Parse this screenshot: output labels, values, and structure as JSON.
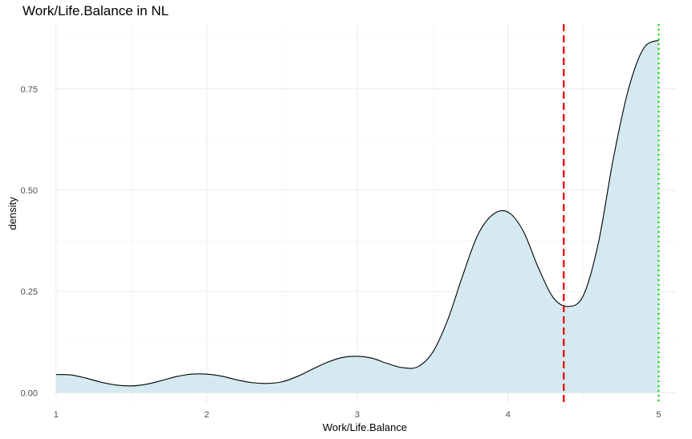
{
  "chart_data": {
    "type": "area",
    "title": "Work/Life.Balance in NL",
    "xlabel": "Work/Life.Balance",
    "ylabel": "density",
    "xlim": [
      0.98,
      5.12
    ],
    "ylim": [
      -0.025,
      0.91
    ],
    "x_ticks": [
      1,
      2,
      3,
      4,
      5
    ],
    "y_ticks": [
      0.0,
      0.25,
      0.5,
      0.75
    ],
    "y_tick_labels": [
      "0.00",
      "0.25",
      "0.50",
      "0.75"
    ],
    "grid": true,
    "fill_color": "#d5e9f1",
    "line_color": "#000000",
    "density": {
      "x": [
        1.0,
        1.1,
        1.2,
        1.3,
        1.4,
        1.5,
        1.6,
        1.7,
        1.8,
        1.9,
        2.0,
        2.1,
        2.2,
        2.3,
        2.4,
        2.5,
        2.6,
        2.7,
        2.8,
        2.9,
        3.0,
        3.1,
        3.2,
        3.3,
        3.4,
        3.5,
        3.6,
        3.7,
        3.8,
        3.9,
        4.0,
        4.1,
        4.2,
        4.3,
        4.4,
        4.5,
        4.6,
        4.7,
        4.8,
        4.9,
        5.0
      ],
      "y": [
        0.045,
        0.044,
        0.036,
        0.026,
        0.019,
        0.017,
        0.021,
        0.03,
        0.04,
        0.046,
        0.046,
        0.041,
        0.032,
        0.025,
        0.023,
        0.027,
        0.04,
        0.058,
        0.075,
        0.087,
        0.09,
        0.085,
        0.072,
        0.062,
        0.064,
        0.1,
        0.18,
        0.29,
        0.39,
        0.44,
        0.446,
        0.4,
        0.31,
        0.235,
        0.213,
        0.24,
        0.37,
        0.58,
        0.75,
        0.85,
        0.87
      ]
    },
    "reference_lines": [
      {
        "x": 4.37,
        "color": "#ee0000",
        "style": "dashed"
      },
      {
        "x": 5.0,
        "color": "#00dd00",
        "style": "dotted"
      }
    ]
  }
}
